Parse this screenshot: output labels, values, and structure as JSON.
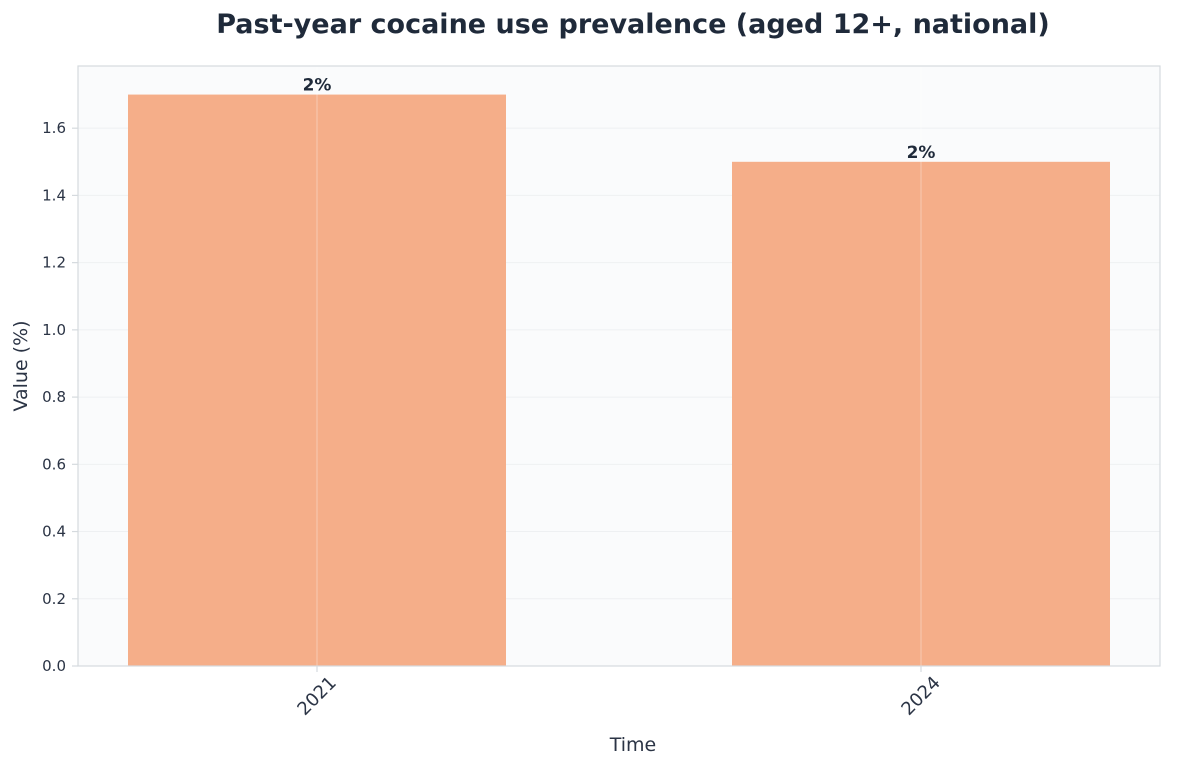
{
  "colors": {
    "bar": "#f5ae89",
    "plot_background": "#fafbfc",
    "grid": "#eef0f2",
    "axis": "#d5dade",
    "text": "#1f2a3a"
  },
  "chart_data": {
    "type": "bar",
    "title": "Past-year cocaine use prevalence (aged 12+, national)",
    "xlabel": "Time",
    "ylabel": "Value (%)",
    "categories": [
      "2021",
      "2024"
    ],
    "values": [
      1.7,
      1.5
    ],
    "data_labels": [
      "2%",
      "2%"
    ],
    "ylim": [
      0,
      1.785
    ],
    "yticks": [
      0.0,
      0.2,
      0.4,
      0.6,
      0.8,
      1.0,
      1.2,
      1.4,
      1.6
    ],
    "ytick_labels": [
      "0.0",
      "0.2",
      "0.4",
      "0.6",
      "0.8",
      "1.0",
      "1.2",
      "1.4",
      "1.6"
    ],
    "grid": true,
    "legend": "none"
  }
}
